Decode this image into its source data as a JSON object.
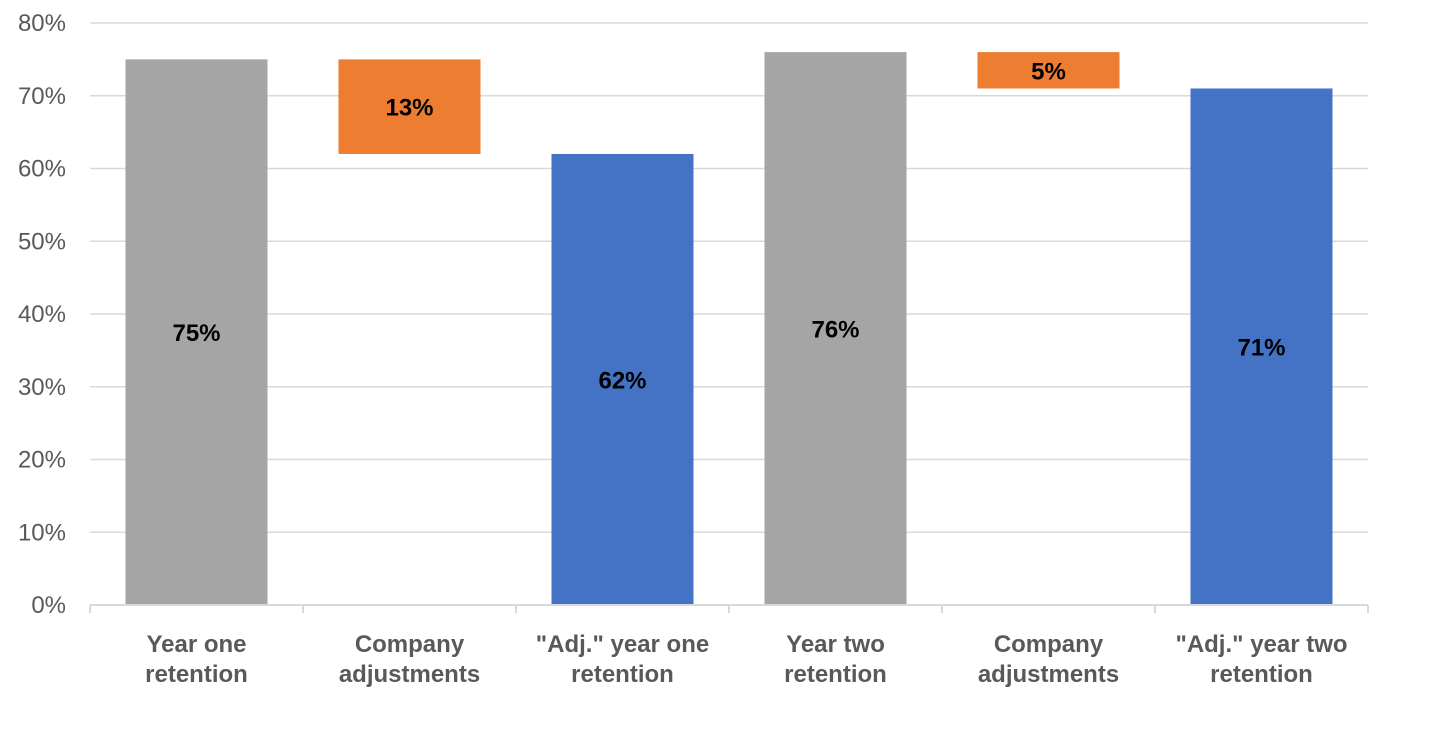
{
  "chart_data": {
    "type": "bar",
    "subtype": "waterfall",
    "title": "",
    "xlabel": "",
    "ylabel": "",
    "ylim": [
      0,
      80
    ],
    "y_ticks": [
      0,
      10,
      20,
      30,
      40,
      50,
      60,
      70,
      80
    ],
    "y_tick_labels": [
      "0%",
      "10%",
      "20%",
      "30%",
      "40%",
      "50%",
      "60%",
      "70%",
      "80%"
    ],
    "grid": true,
    "legend": "none",
    "categories": [
      [
        "Year one",
        "retention"
      ],
      [
        "Company",
        "adjustments"
      ],
      [
        "\"Adj.\" year one",
        "retention"
      ],
      [
        "Year two",
        "retention"
      ],
      [
        "Company",
        "adjustments"
      ],
      [
        "\"Adj.\" year two",
        "retention"
      ]
    ],
    "bars": [
      {
        "base": 0,
        "top": 75,
        "label": "75%",
        "color": "#a5a5a5"
      },
      {
        "base": 62,
        "top": 75,
        "label": "13%",
        "color": "#ed7d31"
      },
      {
        "base": 0,
        "top": 62,
        "label": "62%",
        "color": "#4472c4"
      },
      {
        "base": 0,
        "top": 76,
        "label": "76%",
        "color": "#a5a5a5"
      },
      {
        "base": 71,
        "top": 76,
        "label": "5%",
        "color": "#ed7d31"
      },
      {
        "base": 0,
        "top": 71,
        "label": "71%",
        "color": "#4472c4"
      }
    ]
  }
}
